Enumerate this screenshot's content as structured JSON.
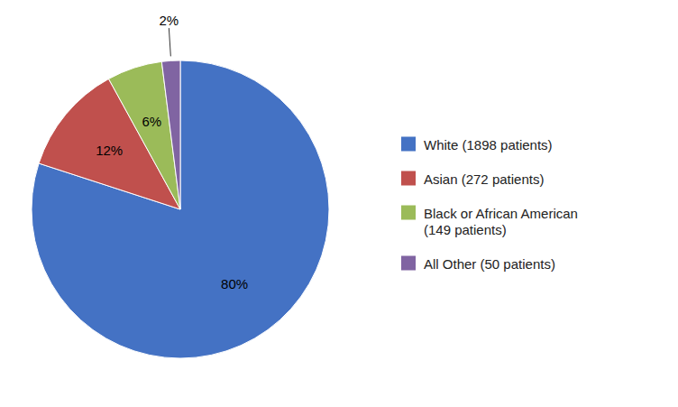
{
  "chart_data": {
    "type": "pie",
    "categories": [
      "White (1898 patients)",
      "Asian (272 patients)",
      "Black or African American\n(149 patients)",
      "All Other (50 patients)"
    ],
    "values": [
      80,
      12,
      6,
      2
    ],
    "value_labels": [
      "80%",
      "12%",
      "6%",
      "2%"
    ],
    "colors": [
      "#4472C4",
      "#C0504D",
      "#9BBB59",
      "#8064A2"
    ],
    "data_labels": true,
    "legend": "right"
  }
}
